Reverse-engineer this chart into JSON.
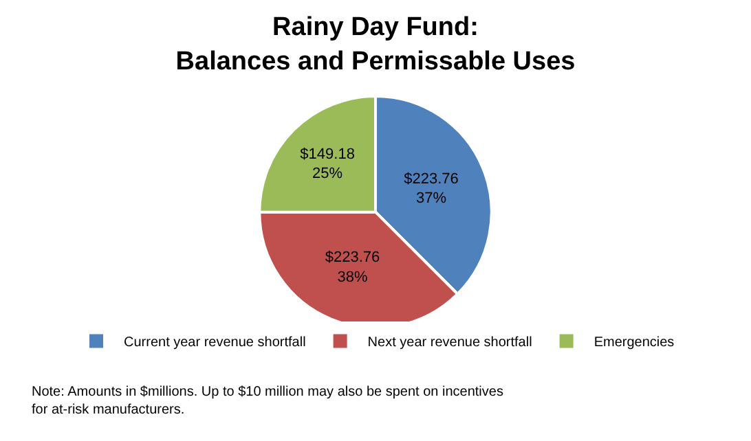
{
  "chart_data": {
    "type": "pie",
    "title": "Rainy Day Fund:\nBalances and Permissable Uses",
    "categories": [
      "Current year revenue shortfall",
      "Next year revenue shortfall",
      "Emergencies"
    ],
    "values": [
      223.76,
      223.76,
      149.18
    ],
    "colors": [
      "#4f81bd",
      "#c0504d",
      "#9bbb59"
    ],
    "value_labels": [
      "$223.76\n37%",
      "$223.76\n38%",
      "$149.18\n25%"
    ],
    "legend": "bottom",
    "annotations": [
      "Note: Amounts in $millions. Up to $10 million may also be spent on incentives\nfor at-risk manufacturers."
    ]
  }
}
